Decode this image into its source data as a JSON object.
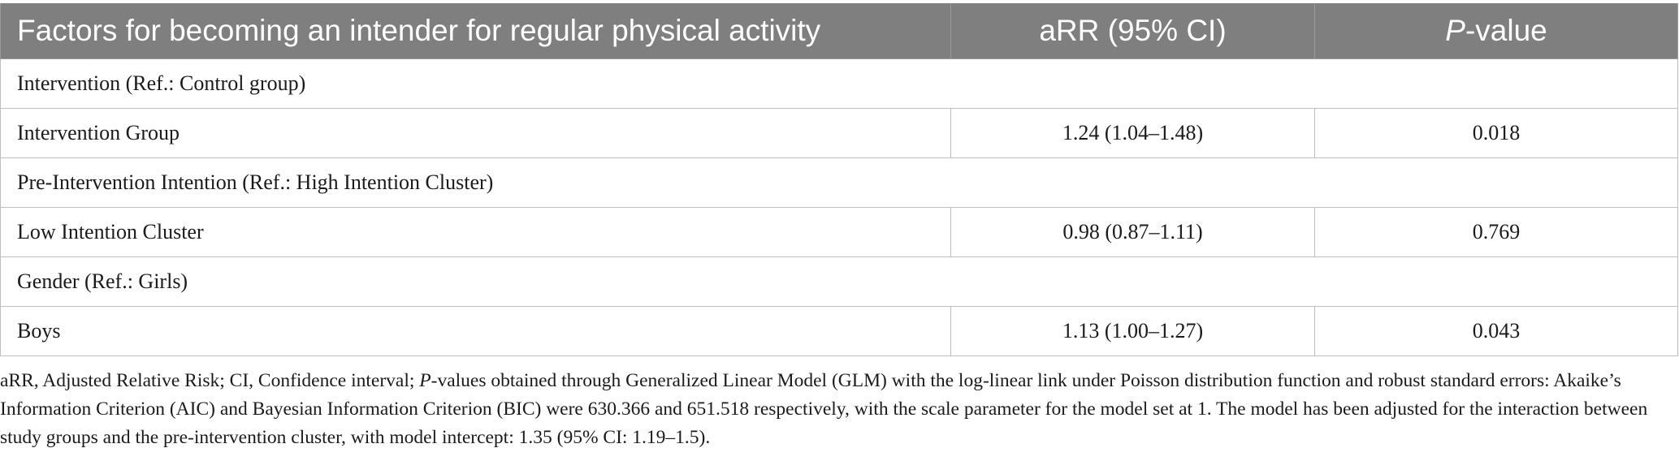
{
  "table": {
    "headers": {
      "factor": "Factors for becoming an intender for regular physical activity",
      "arr": "aRR (95% CI)",
      "pvalue_italic": "P",
      "pvalue_rest": "-value"
    },
    "rows": [
      {
        "type": "group",
        "label": "Intervention (Ref.: Control group)"
      },
      {
        "type": "data",
        "label": "Intervention Group",
        "arr": "1.24 (1.04–1.48)",
        "p": "0.018"
      },
      {
        "type": "group",
        "label": "Pre-Intervention Intention (Ref.: High Intention Cluster)"
      },
      {
        "type": "data",
        "label": "Low Intention Cluster",
        "arr": "0.98 (0.87–1.11)",
        "p": "0.769"
      },
      {
        "type": "group",
        "label": "Gender (Ref.: Girls)"
      },
      {
        "type": "data",
        "label": "Boys",
        "arr": "1.13 (1.00–1.27)",
        "p": "0.043"
      }
    ]
  },
  "footnote": {
    "part1": "aRR, Adjusted Relative Risk; CI, Confidence interval; ",
    "p_italic": "P",
    "part2": "-values obtained through Generalized Linear Model (GLM) with the log-linear link under Poisson distribution function and robust standard errors: Akaike’s Information Criterion (AIC) and Bayesian Information Criterion (BIC) were 630.366 and 651.518 respectively, with the scale parameter for the model set at 1. The model has been adjusted for the interaction between study groups and the pre-intervention cluster, with model intercept: 1.35 (95% CI: 1.19–1.5)."
  }
}
